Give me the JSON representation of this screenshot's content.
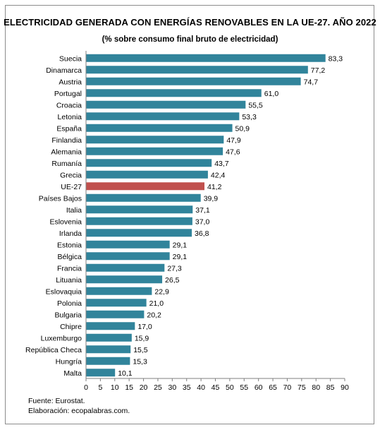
{
  "title": "ELECTRICIDAD GENERADA CON ENERGÍAS RENOVABLES EN LA UE-27. AÑO 2022",
  "subtitle": "(% sobre consumo final bruto de electricidad)",
  "source": "Fuente: Eurostat.",
  "credit": "Elaboración: ecopalabras.com.",
  "colors": {
    "bar": "#31849b",
    "highlight": "#c0504d",
    "axis": "#7f7f7f"
  },
  "chart_data": {
    "type": "bar",
    "orientation": "horizontal",
    "categories": [
      "Suecia",
      "Dinamarca",
      "Austria",
      "Portugal",
      "Croacia",
      "Letonia",
      "España",
      "Finlandia",
      "Alemania",
      "Rumanía",
      "Grecia",
      "UE-27",
      "Países Bajos",
      "Italia",
      "Eslovenia",
      "Irlanda",
      "Estonia",
      "Bélgica",
      "Francia",
      "Lituania",
      "Eslovaquia",
      "Polonia",
      "Bulgaria",
      "Chipre",
      "Luxemburgo",
      "República Checa",
      "Hungría",
      "Malta"
    ],
    "values": [
      83.3,
      77.2,
      74.7,
      61.0,
      55.5,
      53.3,
      50.9,
      47.9,
      47.6,
      43.7,
      42.4,
      41.2,
      39.9,
      37.1,
      37.0,
      36.8,
      29.1,
      29.1,
      27.3,
      26.5,
      22.9,
      21.0,
      20.2,
      17.0,
      15.9,
      15.5,
      15.3,
      10.1
    ],
    "value_labels": [
      "83,3",
      "77,2",
      "74,7",
      "61,0",
      "55,5",
      "53,3",
      "50,9",
      "47,9",
      "47,6",
      "43,7",
      "42,4",
      "41,2",
      "39,9",
      "37,1",
      "37,0",
      "36,8",
      "29,1",
      "29,1",
      "27,3",
      "26,5",
      "22,9",
      "21,0",
      "20,2",
      "17,0",
      "15,9",
      "15,5",
      "15,3",
      "10,1"
    ],
    "highlight": "UE-27",
    "xlim": [
      0,
      90
    ],
    "xticks": [
      0,
      5,
      10,
      15,
      20,
      25,
      30,
      35,
      40,
      45,
      50,
      55,
      60,
      65,
      70,
      75,
      80,
      85,
      90
    ],
    "grid": false,
    "xlabel": "",
    "ylabel": ""
  }
}
